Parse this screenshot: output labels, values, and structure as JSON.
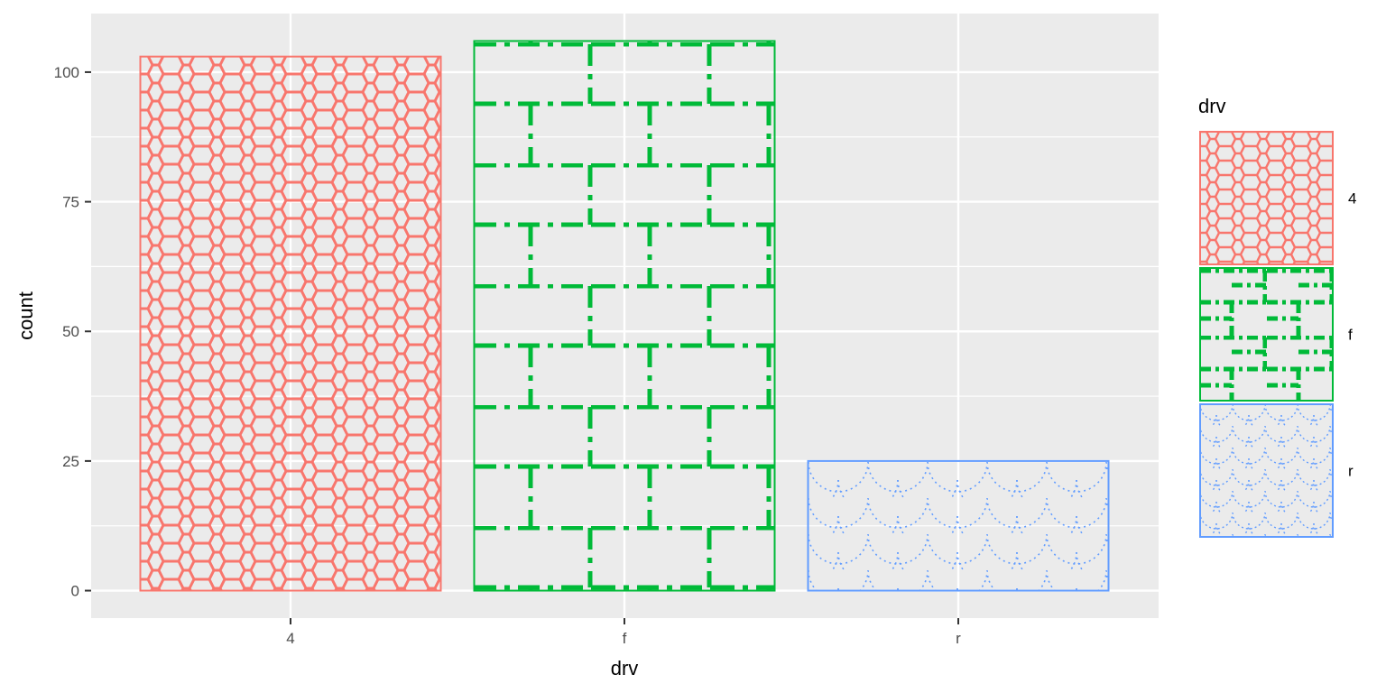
{
  "chart_data": {
    "type": "bar",
    "categories": [
      "4",
      "f",
      "r"
    ],
    "values": [
      103,
      106,
      25
    ],
    "xlabel": "drv",
    "ylabel": "count",
    "ylim": [
      -5.3,
      111.3
    ],
    "yticks": [
      0,
      25,
      50,
      75,
      100
    ],
    "grid": true,
    "legend": {
      "title": "drv",
      "placement": "right",
      "entries": [
        "4",
        "f",
        "r"
      ]
    },
    "colors": [
      "#F8766D",
      "#00BA38",
      "#619CFF"
    ],
    "patterns": [
      "hexagons",
      "dashed-bricks",
      "dotted-scales"
    ],
    "panel_background": "#EBEBEB",
    "grid_color": "#FFFFFF"
  }
}
